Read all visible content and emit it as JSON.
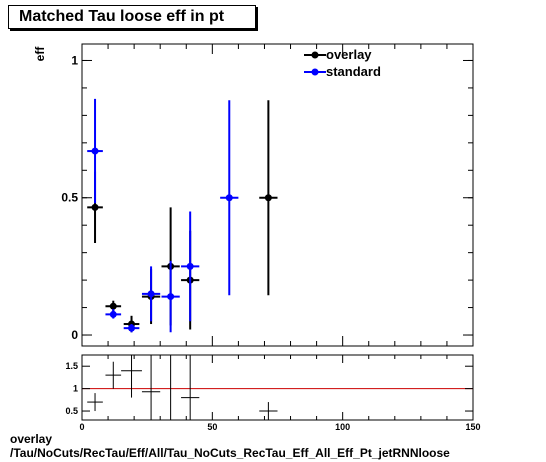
{
  "title": "Matched Tau loose eff in pt",
  "footer": {
    "line1": "overlay",
    "line2": "/Tau/NoCuts/RecTau/Eff/All/Tau_NoCuts_RecTau_Eff_All_Eff_Pt_jetRNNloose"
  },
  "chart_data": [
    {
      "type": "scatter",
      "ylabel": "eff",
      "xlim": [
        0,
        150
      ],
      "ylim": [
        -0.04,
        1.06
      ],
      "yticks": [
        {
          "v": 0,
          "label": "0"
        },
        {
          "v": 0.5,
          "label": "0.5"
        },
        {
          "v": 1,
          "label": "1"
        }
      ],
      "legend_position": "top-right",
      "series": [
        {
          "name": "overlay",
          "color": "#000000",
          "points": [
            {
              "x": 5,
              "xerr": 3,
              "y": 0.465,
              "ylo": 0.335,
              "yhi": 0.595
            },
            {
              "x": 12,
              "xerr": 3,
              "y": 0.105,
              "ylo": 0.085,
              "yhi": 0.125
            },
            {
              "x": 19,
              "xerr": 3,
              "y": 0.04,
              "ylo": 0.01,
              "yhi": 0.07
            },
            {
              "x": 26.5,
              "xerr": 3.5,
              "y": 0.14,
              "ylo": 0.04,
              "yhi": 0.24
            },
            {
              "x": 34,
              "xerr": 3.5,
              "y": 0.25,
              "ylo": 0.035,
              "yhi": 0.465
            },
            {
              "x": 41.5,
              "xerr": 3.5,
              "y": 0.2,
              "ylo": 0.02,
              "yhi": 0.38
            },
            {
              "x": 71.5,
              "xerr": 3.5,
              "y": 0.5,
              "ylo": 0.145,
              "yhi": 0.855
            }
          ]
        },
        {
          "name": "standard",
          "color": "#0000ff",
          "points": [
            {
              "x": 5,
              "xerr": 3,
              "y": 0.67,
              "ylo": 0.48,
              "yhi": 0.86
            },
            {
              "x": 12,
              "xerr": 3,
              "y": 0.075,
              "ylo": 0.06,
              "yhi": 0.095
            },
            {
              "x": 19,
              "xerr": 3,
              "y": 0.025,
              "ylo": 0.01,
              "yhi": 0.04
            },
            {
              "x": 26.5,
              "xerr": 3.5,
              "y": 0.15,
              "ylo": 0.05,
              "yhi": 0.25
            },
            {
              "x": 34,
              "xerr": 3.5,
              "y": 0.14,
              "ylo": 0.01,
              "yhi": 0.27
            },
            {
              "x": 41.5,
              "xerr": 3.5,
              "y": 0.25,
              "ylo": 0.05,
              "yhi": 0.45
            },
            {
              "x": 56.5,
              "xerr": 3.5,
              "y": 0.5,
              "ylo": 0.145,
              "yhi": 0.855
            }
          ]
        }
      ]
    },
    {
      "type": "scatter",
      "xlim": [
        0,
        150
      ],
      "ylim": [
        0.3,
        1.75
      ],
      "xticks": [
        {
          "v": 0,
          "label": "0"
        },
        {
          "v": 50,
          "label": "50"
        },
        {
          "v": 100,
          "label": "100"
        },
        {
          "v": 150,
          "label": "150"
        }
      ],
      "yticks": [
        {
          "v": 0.5,
          "label": "0.5"
        },
        {
          "v": 1,
          "label": "1"
        },
        {
          "v": 1.5,
          "label": "1.5"
        }
      ],
      "reference_line": {
        "y": 1,
        "color": "#cc0000"
      },
      "series": [
        {
          "name": "ratio",
          "color": "#000000",
          "points": [
            {
              "x": 5,
              "xerr": 3,
              "y": 0.7,
              "ylo": 0.5,
              "yhi": 0.9
            },
            {
              "x": 12,
              "xerr": 3,
              "y": 1.3,
              "ylo": 1.0,
              "yhi": 1.6
            },
            {
              "x": 19,
              "xerr": 4,
              "y": 1.4,
              "ylo": 0.8,
              "yhi": 1.75
            },
            {
              "x": 26.5,
              "xerr": 3.5,
              "y": 0.93,
              "ylo": 0.3,
              "yhi": 1.75
            },
            {
              "x": 34,
              "xerr": 3.5,
              "y": 1.75,
              "ylo": 0.3,
              "yhi": 1.75
            },
            {
              "x": 41.5,
              "xerr": 3.5,
              "y": 0.8,
              "ylo": 0.3,
              "yhi": 1.75
            },
            {
              "x": 71.5,
              "xerr": 3.5,
              "y": 0.5,
              "ylo": 0.3,
              "yhi": 0.7
            }
          ]
        }
      ]
    }
  ]
}
